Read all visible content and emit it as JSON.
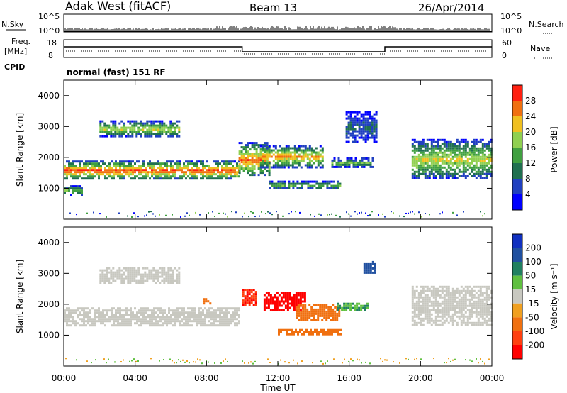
{
  "header": {
    "station": "Adak West (fitACF)",
    "beam": "Beam 13",
    "date": "26/Apr/2014",
    "cpid": "CPID",
    "program": "normal (fast) 151 RF"
  },
  "noise_panel": {
    "left_label": "N.Sky",
    "right_label": "N.Search",
    "left_ticks": [
      "10^5",
      "10^0"
    ],
    "right_ticks": [
      "10^5",
      "10^0"
    ]
  },
  "freq_panel": {
    "left_label_1": "Freq.",
    "left_label_2": "[MHz]",
    "right_label": "Nave",
    "left_ticks": [
      "18",
      "8"
    ],
    "right_ticks": [
      "60",
      "0"
    ]
  },
  "x_axis": {
    "label": "Time UT",
    "ticks": [
      "00:00",
      "04:00",
      "08:00",
      "12:00",
      "16:00",
      "20:00",
      "00:00"
    ]
  },
  "colors": {
    "power_scale": [
      "#0000ff",
      "#2040c0",
      "#207050",
      "#40a040",
      "#90d050",
      "#f0c020",
      "#f07010",
      "#ff2010",
      "#ff0000"
    ],
    "velocity_scale": [
      "#1030c0",
      "#2050a0",
      "#208060",
      "#60c040",
      "#c8c8c0",
      "#f0a020",
      "#f07010",
      "#ff4010",
      "#ff0000"
    ]
  },
  "chart_data": [
    {
      "type": "heatmap",
      "panel": "power",
      "ylabel": "Slant Range [km]",
      "yticks": [
        "1000",
        "2000",
        "3000",
        "4000"
      ],
      "ylim": [
        0,
        4500
      ],
      "xlim_hours": [
        0,
        24
      ],
      "colorbar": {
        "label": "Power [dB]",
        "ticks": [
          "4",
          "8",
          "12",
          "16",
          "20",
          "24",
          "28"
        ],
        "range": [
          0,
          32
        ]
      },
      "regions": [
        {
          "t0": 0.0,
          "t1": 9.8,
          "r0": 1300,
          "r1": 1900,
          "peak": 26
        },
        {
          "t0": 0.0,
          "t1": 1.0,
          "r0": 800,
          "r1": 1100,
          "peak": 14
        },
        {
          "t0": 2.0,
          "t1": 6.5,
          "r0": 2700,
          "r1": 3200,
          "peak": 18
        },
        {
          "t0": 9.8,
          "t1": 11.5,
          "r0": 1400,
          "r1": 2500,
          "peak": 24
        },
        {
          "t0": 11.0,
          "t1": 14.5,
          "r0": 1700,
          "r1": 2400,
          "peak": 22
        },
        {
          "t0": 11.5,
          "t1": 15.5,
          "r0": 1000,
          "r1": 1250,
          "peak": 14
        },
        {
          "t0": 15.0,
          "t1": 17.3,
          "r0": 1700,
          "r1": 2000,
          "peak": 14
        },
        {
          "t0": 15.8,
          "t1": 17.5,
          "r0": 2500,
          "r1": 3500,
          "peak": 8
        },
        {
          "t0": 19.5,
          "t1": 24.0,
          "r0": 1300,
          "r1": 2600,
          "peak": 18
        }
      ]
    },
    {
      "type": "heatmap",
      "panel": "velocity",
      "ylabel": "Slant Range [km]",
      "yticks": [
        "1000",
        "2000",
        "3000",
        "4000"
      ],
      "ylim": [
        0,
        4500
      ],
      "xlim_hours": [
        0,
        24
      ],
      "colorbar": {
        "label": "Velocity [m s⁻¹]",
        "ticks": [
          "200",
          "100",
          "50",
          "15",
          "-15",
          "-50",
          "-100",
          "-200"
        ],
        "range": [
          -250,
          250
        ]
      },
      "regions": [
        {
          "t0": 0.0,
          "t1": 9.8,
          "r0": 1300,
          "r1": 1900,
          "v": 0
        },
        {
          "t0": 2.0,
          "t1": 6.5,
          "r0": 2700,
          "r1": 3200,
          "v": 5
        },
        {
          "t0": 7.8,
          "t1": 8.2,
          "r0": 2000,
          "r1": 2200,
          "v": -80
        },
        {
          "t0": 10.0,
          "t1": 10.8,
          "r0": 2000,
          "r1": 2500,
          "v": -200
        },
        {
          "t0": 11.2,
          "t1": 13.5,
          "r0": 1800,
          "r1": 2400,
          "v": -220
        },
        {
          "t0": 13.0,
          "t1": 15.5,
          "r0": 1500,
          "r1": 2000,
          "v": -90
        },
        {
          "t0": 12.0,
          "t1": 15.5,
          "r0": 1000,
          "r1": 1200,
          "v": -60
        },
        {
          "t0": 15.3,
          "t1": 17.0,
          "r0": 1800,
          "r1": 2050,
          "v": 50
        },
        {
          "t0": 16.8,
          "t1": 17.5,
          "r0": 3000,
          "r1": 3400,
          "v": 180
        },
        {
          "t0": 19.5,
          "t1": 24.0,
          "r0": 1300,
          "r1": 2600,
          "v": 0
        }
      ]
    }
  ]
}
